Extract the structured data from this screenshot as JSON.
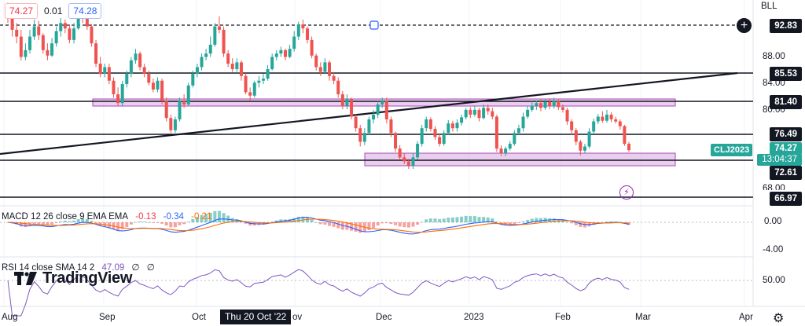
{
  "symbol": "CLJ2023",
  "header": {
    "price_left": "74.27",
    "spread": "0.01",
    "price_right": "74.28",
    "currency": "BLL"
  },
  "price_scale": {
    "ticks": [
      "88.00",
      "84.00",
      "80.00",
      "68.00"
    ],
    "levels": [
      {
        "label": "92.83",
        "price": 92.83,
        "style": "dashed"
      },
      {
        "label": "85.53",
        "price": 85.53,
        "style": "solid"
      },
      {
        "label": "81.40",
        "price": 81.4,
        "style": "solid"
      },
      {
        "label": "76.49",
        "price": 76.49,
        "style": "solid"
      },
      {
        "label": "72.61",
        "price": 72.61,
        "style": "solid"
      },
      {
        "label": "66.97",
        "price": 66.97,
        "style": "solid"
      }
    ],
    "last_price": "74.27",
    "countdown": "13:04:37"
  },
  "macd": {
    "legend": "MACD 12 26 close 9 EMA EMA",
    "v1": "-0.13",
    "v2": "-0.34",
    "v3": "-0.21",
    "ticks": [
      "0.00",
      "-4.00"
    ]
  },
  "rsi": {
    "legend": "RSI 14 close SMA 14 2",
    "v1": "47.09",
    "v2": "∅",
    "v3": "∅",
    "ticks": [
      "50.00"
    ]
  },
  "time_axis": {
    "labels": [
      "Aug",
      "Sep",
      "Oct",
      "Dec",
      "2023",
      "Feb",
      "Mar",
      "Apr"
    ],
    "crosshair": "Thu 20 Oct '22",
    "partial_label": "ov"
  },
  "brand": "TradingView",
  "colors": {
    "up": "#26a69a",
    "down": "#ef5350",
    "band": "#e1bee7",
    "band_border": "#ab47bc",
    "macd": "#2962ff",
    "signal": "#ff6d00",
    "rsi": "#7e57c2"
  },
  "chart_data": {
    "type": "candlestick",
    "title": "CLJ2023",
    "xlabel": "",
    "ylabel": "",
    "ylim": [
      65.5,
      95.2
    ],
    "candles": [
      [
        95,
        94,
        96,
        93
      ],
      [
        94,
        92,
        95,
        91
      ],
      [
        92,
        91,
        93,
        90
      ],
      [
        91,
        88,
        92,
        87.5
      ],
      [
        88,
        89,
        90,
        87.5
      ],
      [
        89,
        91,
        92,
        88.5
      ],
      [
        91,
        92.5,
        93.5,
        90.5
      ],
      [
        92.5,
        91.2,
        93.3,
        90.5
      ],
      [
        91.2,
        89,
        91.5,
        88.5
      ],
      [
        89,
        88.2,
        90,
        87.5
      ],
      [
        88.2,
        90,
        90.8,
        88
      ],
      [
        90,
        91.8,
        92.5,
        89.5
      ],
      [
        91.8,
        93,
        93.8,
        91
      ],
      [
        93,
        92.2,
        93.5,
        91.5
      ],
      [
        92.2,
        90.5,
        92.8,
        90
      ],
      [
        90.5,
        92.2,
        93,
        90
      ],
      [
        92.2,
        94.5,
        95,
        92
      ],
      [
        94.5,
        94,
        95.2,
        93
      ],
      [
        94,
        92.5,
        94.8,
        92
      ],
      [
        92.5,
        90,
        92.8,
        89.5
      ],
      [
        90,
        87,
        90.5,
        86.5
      ],
      [
        87,
        85.5,
        88,
        85
      ],
      [
        85.5,
        86.5,
        87,
        85
      ],
      [
        86.5,
        84.5,
        87,
        84
      ],
      [
        84.5,
        82.5,
        85,
        82
      ],
      [
        82.5,
        81.2,
        83.5,
        80.8
      ],
      [
        81.2,
        84,
        84.5,
        80.8
      ],
      [
        84,
        85.5,
        86,
        83.5
      ],
      [
        85.5,
        87.5,
        88,
        85
      ],
      [
        87.5,
        88.5,
        89.2,
        87
      ],
      [
        88.5,
        86.5,
        88.8,
        86
      ],
      [
        86.5,
        85.5,
        87,
        85
      ],
      [
        85.5,
        84.2,
        86,
        83.8
      ],
      [
        84.2,
        83.2,
        84.8,
        82.8
      ],
      [
        83.2,
        84.5,
        85,
        82.8
      ],
      [
        84.5,
        81.5,
        84.8,
        81
      ],
      [
        81.5,
        79,
        82,
        78.5
      ],
      [
        79,
        77.2,
        79.5,
        76.8
      ],
      [
        77.2,
        78.8,
        79.2,
        76.8
      ],
      [
        78.8,
        81.5,
        82,
        78.5
      ],
      [
        81.5,
        81,
        82.5,
        80.5
      ],
      [
        81,
        83.8,
        84.2,
        80.8
      ],
      [
        83.8,
        85.5,
        86,
        83.5
      ],
      [
        85.5,
        86.5,
        87,
        85
      ],
      [
        86.5,
        88,
        88.5,
        86
      ],
      [
        88,
        88.5,
        89.2,
        87.5
      ],
      [
        88.5,
        89.8,
        91,
        88
      ],
      [
        89.8,
        92.5,
        93,
        89.5
      ],
      [
        92.5,
        92,
        94,
        91.5
      ],
      [
        92,
        88.5,
        92.5,
        88
      ],
      [
        88.5,
        87,
        89,
        86.5
      ],
      [
        87,
        86.2,
        87.8,
        85.8
      ],
      [
        86.2,
        87.2,
        87.8,
        85.8
      ],
      [
        87.2,
        85.2,
        87.5,
        84.5
      ],
      [
        85.2,
        82.8,
        85.6,
        82.5
      ],
      [
        82.8,
        82.3,
        83.5,
        81.5
      ],
      [
        82.3,
        84.2,
        84.5,
        82
      ],
      [
        84.2,
        84.5,
        85.2,
        83.5
      ],
      [
        84.5,
        84.8,
        85.5,
        84
      ],
      [
        84.8,
        86.2,
        86.8,
        84.5
      ],
      [
        86.2,
        88,
        88.5,
        86
      ],
      [
        88,
        88.5,
        89,
        87.5
      ],
      [
        88.5,
        89,
        89.5,
        88
      ],
      [
        89,
        88,
        89.2,
        87.5
      ],
      [
        88,
        89.2,
        89.8,
        87.8
      ],
      [
        89.2,
        91,
        91.8,
        88.8
      ],
      [
        91,
        92.8,
        93.2,
        90.5
      ],
      [
        92.8,
        92.2,
        93.5,
        91.5
      ],
      [
        92.2,
        90.5,
        92.5,
        90
      ],
      [
        90.5,
        88.2,
        91,
        87.8
      ],
      [
        88.2,
        86.5,
        88.5,
        86
      ],
      [
        86.5,
        85.8,
        87.2,
        85.2
      ],
      [
        85.8,
        87.2,
        87.8,
        85.5
      ],
      [
        87.2,
        85.2,
        87.5,
        84.5
      ],
      [
        85.2,
        84.5,
        85.8,
        84
      ],
      [
        84.5,
        82.5,
        85,
        82
      ],
      [
        82.5,
        80.8,
        83,
        80.3
      ],
      [
        80.8,
        81.8,
        82.5,
        80.3
      ],
      [
        81.8,
        79.2,
        82,
        78.8
      ],
      [
        79.2,
        77.5,
        79.5,
        77
      ],
      [
        77.5,
        75.5,
        78,
        74.8
      ],
      [
        75.5,
        76.8,
        77.5,
        75
      ],
      [
        76.8,
        78.8,
        79.2,
        76.5
      ],
      [
        78.8,
        79.5,
        80.2,
        78.2
      ],
      [
        79.5,
        81,
        81.5,
        79
      ],
      [
        81,
        81.5,
        82,
        80.5
      ],
      [
        81.5,
        78.8,
        82,
        78.2
      ],
      [
        78.8,
        76.8,
        79.2,
        76.2
      ],
      [
        76.8,
        74.5,
        77,
        74
      ],
      [
        74.5,
        73.2,
        75,
        72.8
      ],
      [
        73.2,
        72.6,
        73.8,
        72.2
      ],
      [
        72.6,
        72,
        73,
        71.5
      ],
      [
        72,
        73.2,
        73.8,
        71.5
      ],
      [
        73.2,
        75.2,
        75.6,
        72.9
      ],
      [
        75.2,
        77.5,
        78,
        74.8
      ],
      [
        77.5,
        78.8,
        79.2,
        77
      ],
      [
        78.8,
        77.4,
        79.1,
        77
      ],
      [
        77.4,
        76.2,
        77.8,
        75.8
      ],
      [
        76.2,
        75.2,
        76.6,
        74.8
      ],
      [
        75.2,
        76.8,
        77.2,
        74.9
      ],
      [
        76.8,
        78.2,
        78.7,
        76.5
      ],
      [
        78.2,
        77.5,
        78.6,
        77
      ],
      [
        77.5,
        78.3,
        78.8,
        77
      ],
      [
        78.3,
        79.1,
        79.5,
        77.9
      ],
      [
        79.1,
        80.2,
        80.5,
        78.8
      ],
      [
        80.2,
        79.5,
        80.6,
        79
      ],
      [
        79.5,
        80.2,
        80.8,
        79.2
      ],
      [
        80.2,
        79,
        80.5,
        78.5
      ],
      [
        79,
        80.5,
        81,
        78.8
      ],
      [
        80.5,
        80,
        81,
        79.5
      ],
      [
        80,
        79.2,
        80.5,
        78.8
      ],
      [
        79.2,
        74.5,
        79.5,
        74
      ],
      [
        74.5,
        73.8,
        75,
        73.4
      ],
      [
        73.8,
        74.5,
        74.8,
        73.4
      ],
      [
        74.5,
        75.2,
        75.6,
        74.2
      ],
      [
        75.2,
        76.8,
        77.2,
        74.9
      ],
      [
        76.8,
        77.5,
        78,
        76.5
      ],
      [
        77.5,
        79.2,
        79.8,
        77
      ],
      [
        79.2,
        80.2,
        80.8,
        78.9
      ],
      [
        80.2,
        80.8,
        81.5,
        79.9
      ],
      [
        80.8,
        81.2,
        81.6,
        80.2
      ],
      [
        81.2,
        80.5,
        81.8,
        80
      ],
      [
        80.5,
        81.4,
        81.8,
        80.2
      ],
      [
        81.4,
        80.7,
        81.9,
        80.3
      ],
      [
        80.7,
        81.5,
        82,
        80.4
      ],
      [
        81.5,
        80.6,
        81.8,
        80.2
      ],
      [
        80.6,
        80.2,
        81,
        79.8
      ],
      [
        80.2,
        78.5,
        80.5,
        78
      ],
      [
        78.5,
        77.2,
        78.8,
        76.5
      ],
      [
        77.2,
        75.5,
        77.5,
        75
      ],
      [
        75.5,
        74.2,
        75.8,
        73.5
      ],
      [
        74.2,
        74.8,
        75.2,
        73.8
      ],
      [
        74.8,
        77,
        77.5,
        74.5
      ],
      [
        77,
        78.5,
        78.9,
        76.6
      ],
      [
        78.5,
        79.2,
        79.6,
        78.1
      ],
      [
        79.2,
        78.6,
        80,
        78.3
      ],
      [
        78.6,
        79.5,
        80.2,
        78.3
      ],
      [
        79.5,
        78.8,
        79.9,
        78.4
      ],
      [
        78.8,
        78.5,
        79.2,
        78.2
      ],
      [
        78.5,
        77.8,
        78.8,
        77.3
      ],
      [
        77.8,
        75.2,
        78,
        74.9
      ],
      [
        75.2,
        74.27,
        75.5,
        74
      ]
    ]
  }
}
